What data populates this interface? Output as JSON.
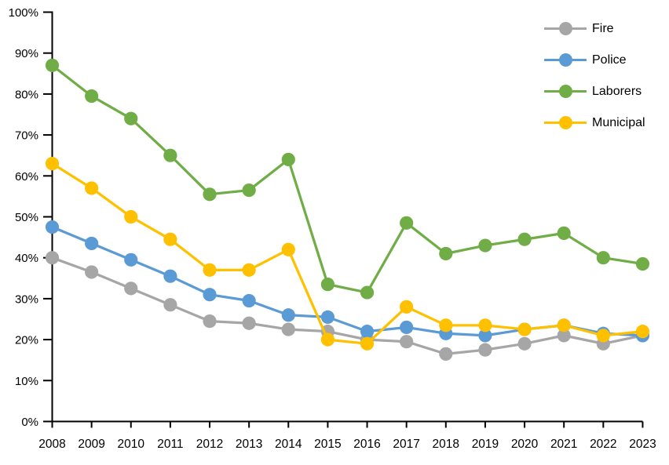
{
  "chart_data": {
    "type": "line",
    "title": "",
    "xlabel": "",
    "ylabel": "",
    "grid": false,
    "legend_position": "top-right",
    "axis_color": "#000000",
    "x": [
      2008,
      2009,
      2010,
      2011,
      2012,
      2013,
      2014,
      2015,
      2016,
      2017,
      2018,
      2019,
      2020,
      2021,
      2022,
      2023
    ],
    "y_axis": {
      "min": 0,
      "max": 100,
      "step": 10,
      "tick_labels": [
        "0%",
        "10%",
        "20%",
        "30%",
        "40%",
        "50%",
        "60%",
        "70%",
        "80%",
        "90%",
        "100%"
      ]
    },
    "series": [
      {
        "name": "Fire",
        "color": "#A6A6A6",
        "values": [
          40,
          36.5,
          32.5,
          28.5,
          24.5,
          24,
          22.5,
          22,
          20,
          19.5,
          16.5,
          17.5,
          19,
          21,
          19,
          21
        ]
      },
      {
        "name": "Police",
        "color": "#5B9BD5",
        "values": [
          47.5,
          43.5,
          39.5,
          35.5,
          31,
          29.5,
          26,
          25.5,
          22,
          23,
          21.5,
          21,
          22.5,
          23.5,
          21.5,
          21
        ]
      },
      {
        "name": "Laborers",
        "color": "#70AD47",
        "values": [
          87,
          79.5,
          74,
          65,
          55.5,
          56.5,
          64,
          33.5,
          31.5,
          48.5,
          41,
          43,
          44.5,
          46,
          40,
          38.5
        ]
      },
      {
        "name": "Municipal",
        "color": "#FFC000",
        "values": [
          63,
          57,
          50,
          44.5,
          37,
          37,
          42,
          20,
          19,
          28,
          23.5,
          23.5,
          22.5,
          23.5,
          21,
          22
        ]
      }
    ]
  }
}
